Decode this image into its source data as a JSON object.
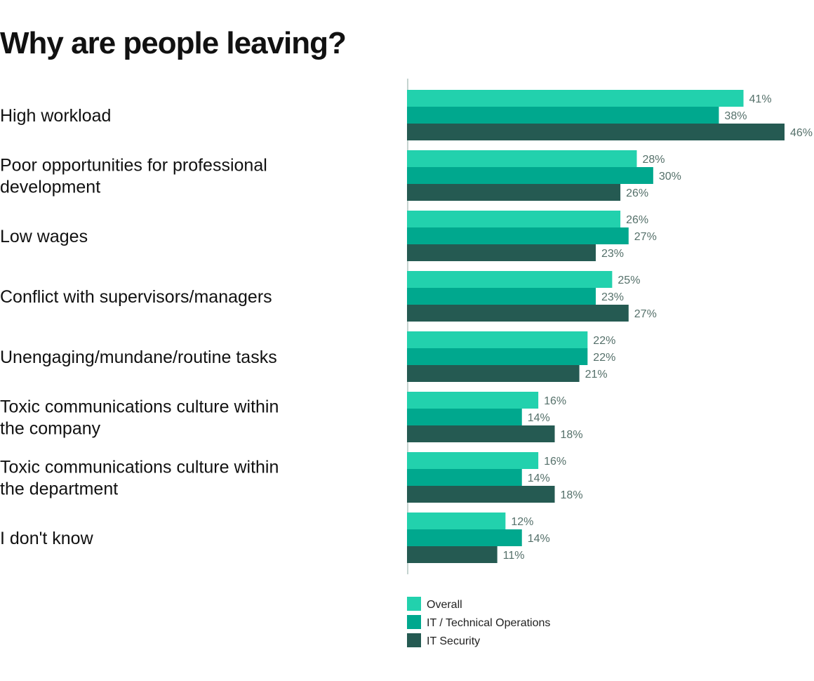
{
  "chart_data": {
    "type": "bar",
    "orientation": "horizontal",
    "title": "Why are people leaving?",
    "unit": "%",
    "categories": [
      "High workload",
      "Poor opportunities for professional development",
      "Low wages",
      "Conflict with supervisors/managers",
      "Unengaging/mundane/routine tasks",
      "Toxic communications culture within the company",
      "Toxic communications culture within the department",
      "I don't know"
    ],
    "category_lines": [
      [
        "High workload"
      ],
      [
        "Poor opportunities for professional",
        "development"
      ],
      [
        "Low wages"
      ],
      [
        "Conflict with supervisors/managers"
      ],
      [
        "Unengaging/mundane/routine tasks"
      ],
      [
        "Toxic communications culture within",
        "the company"
      ],
      [
        "Toxic communications culture within",
        "the department"
      ],
      [
        "I don't know"
      ]
    ],
    "series": [
      {
        "name": "Overall",
        "color": "#22d1ad",
        "values": [
          41,
          28,
          26,
          25,
          22,
          16,
          16,
          12
        ]
      },
      {
        "name": "IT / Technical Operations",
        "color": "#00a88e",
        "values": [
          38,
          30,
          27,
          23,
          22,
          14,
          14,
          14
        ]
      },
      {
        "name": "IT Security",
        "color": "#255a52",
        "values": [
          46,
          26,
          23,
          27,
          21,
          18,
          18,
          11
        ]
      }
    ],
    "xlim": [
      0,
      46
    ],
    "grid": false,
    "legend": "bottom"
  }
}
